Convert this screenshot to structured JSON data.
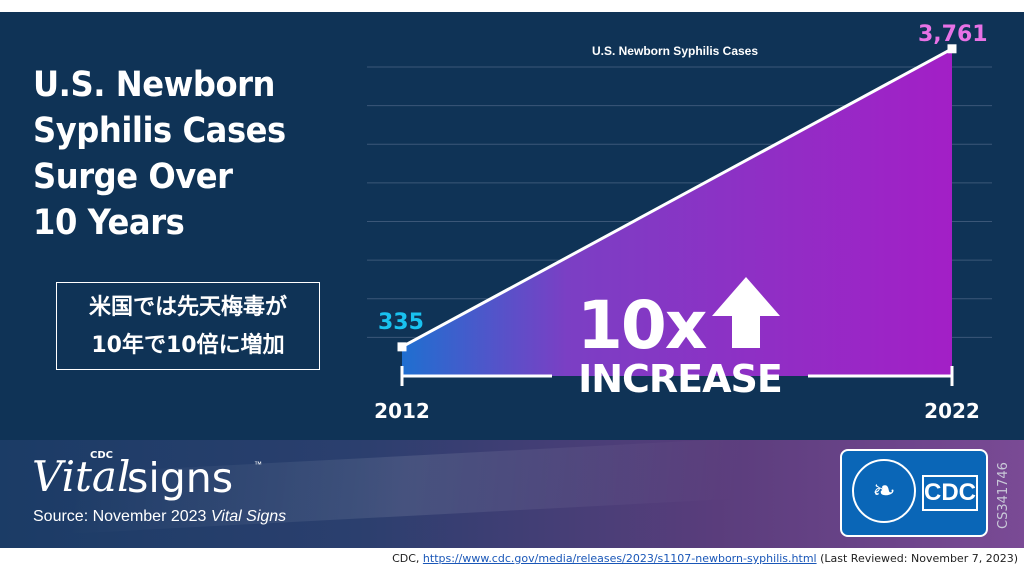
{
  "headline": [
    "U.S. Newborn",
    "Syphilis Cases",
    "Surge Over",
    "10 Years"
  ],
  "japanese_note": [
    "米国では先天梅毒が",
    "10年で10倍に増加"
  ],
  "chart_data": {
    "type": "area",
    "title": "U.S. Newborn Syphilis Cases",
    "x": [
      "2012",
      "2022"
    ],
    "values": [
      335,
      3761
    ],
    "value_labels": [
      "335",
      "3,761"
    ],
    "ylim": [
      0,
      4000
    ],
    "grid": true,
    "annotation_big": "10x",
    "annotation_small": "INCREASE",
    "colors": {
      "start": "#1f6fd0",
      "mid": "#7b3fc4",
      "end": "#a31fc6",
      "label_start": "#19c2f0",
      "label_end": "#e872e6"
    }
  },
  "footer": {
    "brand_small": "CDC",
    "brand_vital": "Vital",
    "brand_signs": "signs",
    "brand_tm": "™",
    "source_prefix": "Source: November 2023 ",
    "source_italic": "Vital Signs",
    "logo_text": "CDC",
    "logo_icon": "hhs-eagle-seal-icon",
    "doc_id": "CS341746"
  },
  "caption": {
    "prefix": "CDC, ",
    "link": "https://www.cdc.gov/media/releases/2023/s1107-newborn-syphilis.html",
    "suffix": " (Last Reviewed: November 7, 2023)"
  }
}
